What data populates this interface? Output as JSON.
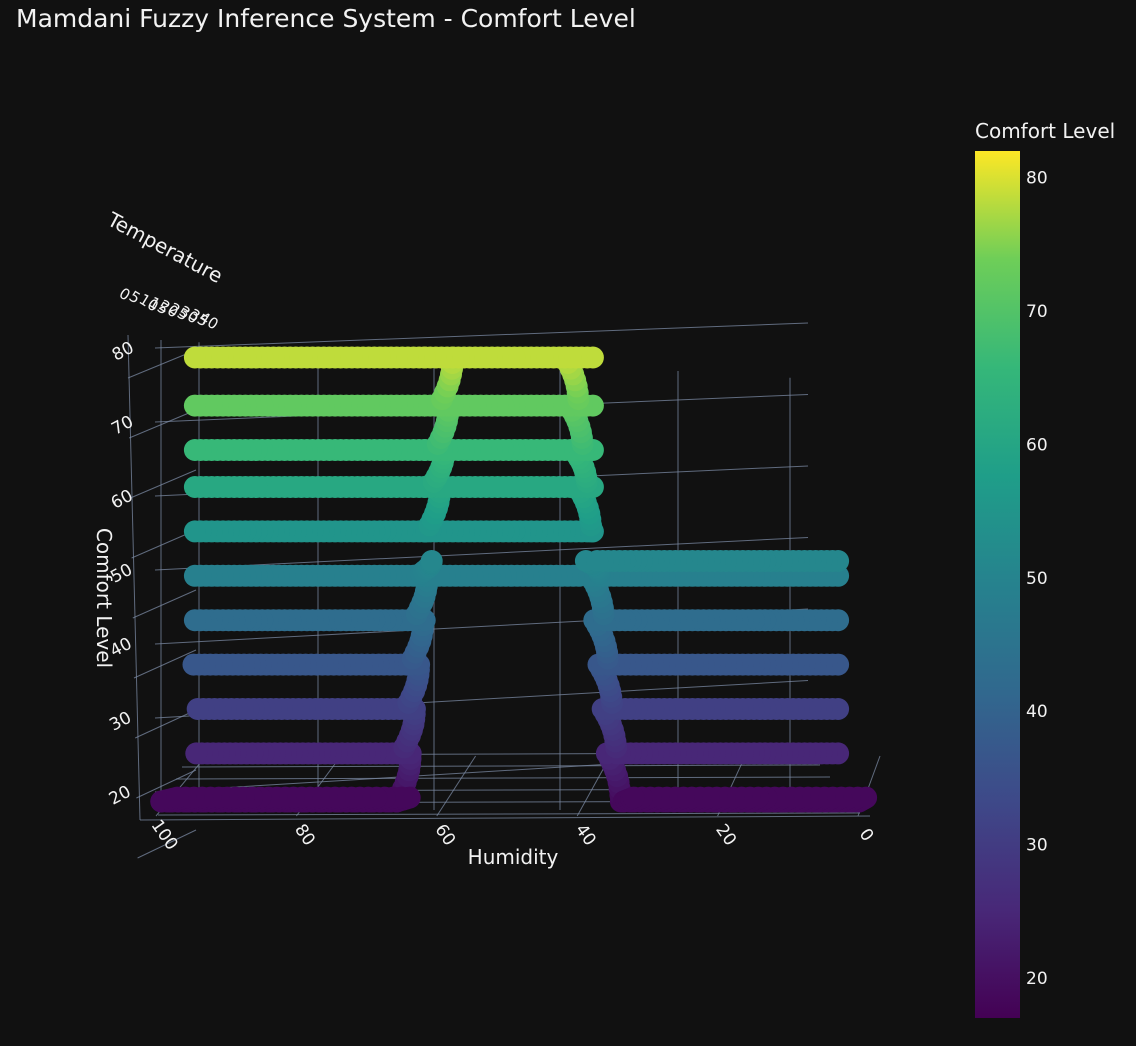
{
  "chart_data": {
    "type": "scatter3d",
    "title": "Mamdani Fuzzy Inference System - Comfort Level",
    "x_axis": {
      "label": "Humidity",
      "range": [
        0,
        100
      ],
      "ticks": [
        "0",
        "20",
        "40",
        "60",
        "80",
        "100"
      ],
      "reversed": true
    },
    "y_axis": {
      "label": "Temperature",
      "range": [
        0,
        40
      ],
      "ticks": [
        "0",
        "5",
        "10",
        "15",
        "20",
        "25",
        "30",
        "35",
        "40"
      ]
    },
    "z_axis": {
      "label": "Comfort Level",
      "range": [
        17,
        82
      ],
      "ticks": [
        "20",
        "30",
        "40",
        "50",
        "60",
        "70",
        "80"
      ]
    },
    "colorbar": {
      "title": "Comfort Level",
      "colorscale": "Viridis",
      "range": [
        17,
        82
      ],
      "ticks": [
        "20",
        "30",
        "40",
        "50",
        "60",
        "70",
        "80"
      ]
    },
    "grid": true,
    "background": "#111111",
    "series": [
      {
        "marker_shape": "circle",
        "levels": [
          {
            "comfort": 18.5,
            "humidity_ranges": [
              [
                0,
                34
              ],
              [
                66,
                100
              ]
            ],
            "join_to_next": true
          },
          {
            "comfort": 25,
            "humidity_ranges": [
              [
                3,
                35
              ],
              [
                65,
                95
              ]
            ],
            "join_to_next": true
          },
          {
            "comfort": 31,
            "humidity_ranges": [
              [
                3,
                36
              ],
              [
                64,
                95
              ]
            ],
            "join_to_next": true
          },
          {
            "comfort": 37,
            "humidity_ranges": [
              [
                3,
                37
              ],
              [
                63,
                95
              ]
            ],
            "join_to_next": true
          },
          {
            "comfort": 43,
            "humidity_ranges": [
              [
                3,
                38
              ],
              [
                62,
                95
              ]
            ],
            "join_to_next": true
          },
          {
            "comfort": 49,
            "humidity_ranges": [
              [
                3,
                38
              ],
              [
                40,
                60
              ],
              [
                62,
                95
              ]
            ],
            "join_to_next": true
          },
          {
            "comfort": 51,
            "humidity_ranges": [
              [
                3,
                38
              ]
            ],
            "join_to_next": false
          },
          {
            "comfort": 55,
            "humidity_ranges": [
              [
                38,
                62
              ],
              [
                62,
                95
              ]
            ],
            "join_to_next": true
          },
          {
            "comfort": 61,
            "humidity_ranges": [
              [
                38,
                62
              ],
              [
                62,
                95
              ]
            ],
            "join_to_next": true
          },
          {
            "comfort": 66,
            "humidity_ranges": [
              [
                38,
                62
              ],
              [
                62,
                95
              ]
            ],
            "join_to_next": true
          },
          {
            "comfort": 72,
            "humidity_ranges": [
              [
                38,
                62
              ],
              [
                62,
                95
              ]
            ],
            "join_to_next": true
          },
          {
            "comfort": 78.5,
            "humidity_ranges": [
              [
                38,
                62
              ],
              [
                62,
                95
              ]
            ],
            "join_to_next": false
          }
        ]
      }
    ]
  }
}
